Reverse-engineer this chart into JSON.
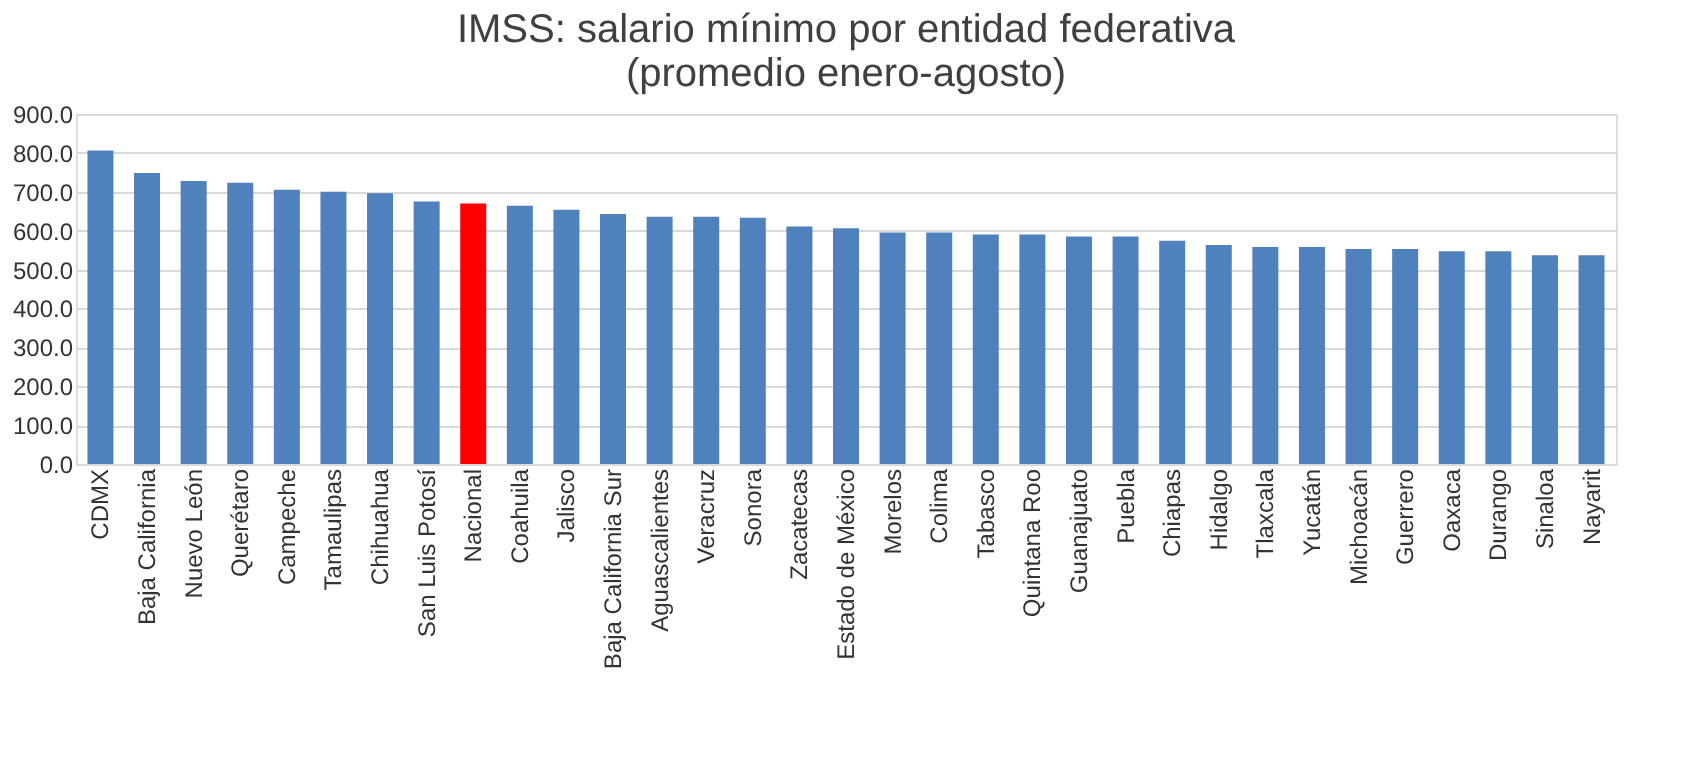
{
  "chart_data": {
    "type": "bar",
    "title": [
      "IMSS: salario mínimo por entidad federativa",
      "(promedio enero-agosto)"
    ],
    "categories": [
      "CDMX",
      "Baja California",
      "Nuevo León",
      "Querétaro",
      "Campeche",
      "Tamaulipas",
      "Chihuahua",
      "San Luis Potosí",
      "Nacional",
      "Coahuila",
      "Jalisco",
      "Baja California Sur",
      "Aguascalientes",
      "Veracruz",
      "Sonora",
      "Zacatecas",
      "Estado de México",
      "Morelos",
      "Colima",
      "Tabasco",
      "Quintana Roo",
      "Guanajuato",
      "Puebla",
      "Chiapas",
      "Hidalgo",
      "Tlaxcala",
      "Yucatán",
      "Michoacán",
      "Guerrero",
      "Oaxaca",
      "Durango",
      "Sinaloa",
      "Nayarit"
    ],
    "values": [
      806,
      748,
      728,
      723,
      705,
      700,
      696,
      675,
      670,
      664,
      654,
      643,
      636,
      636,
      633,
      611,
      606,
      595,
      595,
      590,
      590,
      585,
      585,
      574,
      563,
      558,
      558,
      553,
      553,
      547,
      547,
      537,
      537
    ],
    "colors": [
      "#4f81bd",
      "#4f81bd",
      "#4f81bd",
      "#4f81bd",
      "#4f81bd",
      "#4f81bd",
      "#4f81bd",
      "#4f81bd",
      "#ff0000",
      "#4f81bd",
      "#4f81bd",
      "#4f81bd",
      "#4f81bd",
      "#4f81bd",
      "#4f81bd",
      "#4f81bd",
      "#4f81bd",
      "#4f81bd",
      "#4f81bd",
      "#4f81bd",
      "#4f81bd",
      "#4f81bd",
      "#4f81bd",
      "#4f81bd",
      "#4f81bd",
      "#4f81bd",
      "#4f81bd",
      "#4f81bd",
      "#4f81bd",
      "#4f81bd",
      "#4f81bd",
      "#4f81bd",
      "#4f81bd"
    ],
    "ylim": [
      0,
      900
    ],
    "yticks": [
      {
        "value": 0,
        "label": "0.0"
      },
      {
        "value": 100,
        "label": "100.0"
      },
      {
        "value": 200,
        "label": "200.0"
      },
      {
        "value": 300,
        "label": "300.0"
      },
      {
        "value": 400,
        "label": "400.0"
      },
      {
        "value": 500,
        "label": "500.0"
      },
      {
        "value": 600,
        "label": "600.0"
      },
      {
        "value": 700,
        "label": "700.0"
      },
      {
        "value": 800,
        "label": "800.0"
      },
      {
        "value": 900,
        "label": "900.0"
      }
    ],
    "grid": "y"
  }
}
